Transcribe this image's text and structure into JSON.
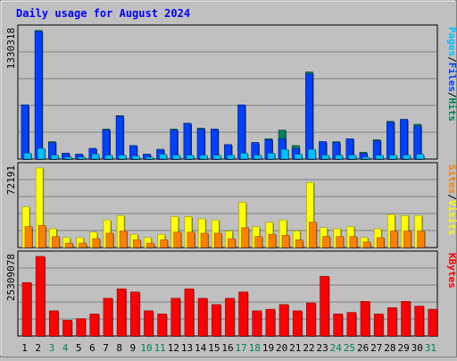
{
  "title": "Daily usage for August 2024",
  "colors": {
    "background": "#c0c0c0",
    "panel": "#c0c0c0",
    "hits": "#00805c",
    "files": "#0040ff",
    "pages": "#00c0ff",
    "visits": "#ffff00",
    "sites": "#ff8000",
    "kbytes": "#ff0000",
    "title": "#0000ff",
    "weekend": "#00805c"
  },
  "chart_data": [
    {
      "type": "bar",
      "name": "hits-files-pages",
      "max_label": "1330318",
      "ylim": [
        0,
        1330318
      ],
      "legend": [
        {
          "label": "Hits",
          "color": "#00805c"
        },
        {
          "label": "/",
          "color": "#000000"
        },
        {
          "label": "Files",
          "color": "#0040ff"
        },
        {
          "label": "/",
          "color": "#000000"
        },
        {
          "label": "Pages",
          "color": "#00c0ff"
        }
      ],
      "series": [
        {
          "name": "Hits",
          "color": "#00805c",
          "values": [
            560000,
            1330318,
            180000,
            60000,
            50000,
            110000,
            310000,
            450000,
            140000,
            50000,
            100000,
            310000,
            370000,
            320000,
            310000,
            150000,
            560000,
            170000,
            210000,
            300000,
            140000,
            900000,
            180000,
            180000,
            210000,
            70000,
            200000,
            390000,
            410000,
            360000,
            0
          ]
        },
        {
          "name": "Files",
          "color": "#0040ff",
          "values": [
            560000,
            1320000,
            170000,
            60000,
            50000,
            110000,
            300000,
            440000,
            140000,
            50000,
            100000,
            300000,
            370000,
            310000,
            310000,
            150000,
            560000,
            170000,
            200000,
            210000,
            110000,
            880000,
            180000,
            170000,
            210000,
            60000,
            190000,
            380000,
            410000,
            340000,
            0
          ]
        },
        {
          "name": "Pages",
          "color": "#00c0ff",
          "values": [
            60000,
            110000,
            40000,
            20000,
            20000,
            50000,
            40000,
            40000,
            30000,
            20000,
            50000,
            40000,
            40000,
            40000,
            40000,
            40000,
            60000,
            40000,
            60000,
            100000,
            50000,
            100000,
            40000,
            40000,
            40000,
            20000,
            40000,
            40000,
            40000,
            50000,
            0
          ]
        }
      ]
    },
    {
      "type": "bar",
      "name": "visits-sites",
      "max_label": "72191",
      "ylim": [
        0,
        72191
      ],
      "legend": [
        {
          "label": "Visits",
          "color": "#ffff00"
        },
        {
          "label": "/",
          "color": "#000000"
        },
        {
          "label": "Sites",
          "color": "#ff8000"
        }
      ],
      "series": [
        {
          "name": "Visits",
          "color": "#ffff00",
          "values": [
            37000,
            72191,
            17000,
            9000,
            9000,
            14000,
            25000,
            29000,
            12000,
            9000,
            12000,
            28000,
            28000,
            26000,
            25000,
            15000,
            41000,
            19000,
            23000,
            25000,
            15000,
            59000,
            18000,
            17000,
            19000,
            9000,
            17000,
            30000,
            29000,
            29000,
            0
          ]
        },
        {
          "name": "Sites",
          "color": "#ff8000",
          "values": [
            19000,
            20000,
            10000,
            4000,
            4000,
            8000,
            13000,
            15000,
            7000,
            4000,
            7000,
            14000,
            14000,
            13000,
            13000,
            8000,
            18000,
            10000,
            12000,
            11000,
            7000,
            23000,
            10000,
            10000,
            10000,
            5000,
            9000,
            15000,
            15000,
            15000,
            0
          ]
        }
      ]
    },
    {
      "type": "bar",
      "name": "kbytes",
      "max_label": "25309078",
      "ylim": [
        0,
        25309078
      ],
      "legend": [
        {
          "label": "KBytes",
          "color": "#ff0000"
        }
      ],
      "series": [
        {
          "name": "KBytes",
          "color": "#ff0000",
          "values": [
            17000000,
            25309078,
            8000000,
            5000000,
            5500000,
            7000000,
            12000000,
            15000000,
            14000000,
            8000000,
            7000000,
            12000000,
            15000000,
            12000000,
            10000000,
            12000000,
            14000000,
            8000000,
            8500000,
            10000000,
            8000000,
            10500000,
            19000000,
            7000000,
            7500000,
            11000000,
            7000000,
            9000000,
            11000000,
            9500000,
            8500000
          ]
        }
      ]
    }
  ],
  "x_labels": [
    {
      "label": "1",
      "weekend": false
    },
    {
      "label": "2",
      "weekend": false
    },
    {
      "label": "3",
      "weekend": true
    },
    {
      "label": "4",
      "weekend": true
    },
    {
      "label": "5",
      "weekend": false
    },
    {
      "label": "6",
      "weekend": false
    },
    {
      "label": "7",
      "weekend": false
    },
    {
      "label": "8",
      "weekend": false
    },
    {
      "label": "9",
      "weekend": false
    },
    {
      "label": "10",
      "weekend": true
    },
    {
      "label": "11",
      "weekend": true
    },
    {
      "label": "12",
      "weekend": false
    },
    {
      "label": "13",
      "weekend": false
    },
    {
      "label": "14",
      "weekend": false
    },
    {
      "label": "15",
      "weekend": false
    },
    {
      "label": "16",
      "weekend": false
    },
    {
      "label": "17",
      "weekend": true
    },
    {
      "label": "18",
      "weekend": true
    },
    {
      "label": "19",
      "weekend": false
    },
    {
      "label": "20",
      "weekend": false
    },
    {
      "label": "21",
      "weekend": false
    },
    {
      "label": "22",
      "weekend": false
    },
    {
      "label": "23",
      "weekend": false
    },
    {
      "label": "24",
      "weekend": true
    },
    {
      "label": "25",
      "weekend": true
    },
    {
      "label": "26",
      "weekend": false
    },
    {
      "label": "27",
      "weekend": false
    },
    {
      "label": "28",
      "weekend": false
    },
    {
      "label": "29",
      "weekend": false
    },
    {
      "label": "30",
      "weekend": false
    },
    {
      "label": "31",
      "weekend": true
    }
  ]
}
